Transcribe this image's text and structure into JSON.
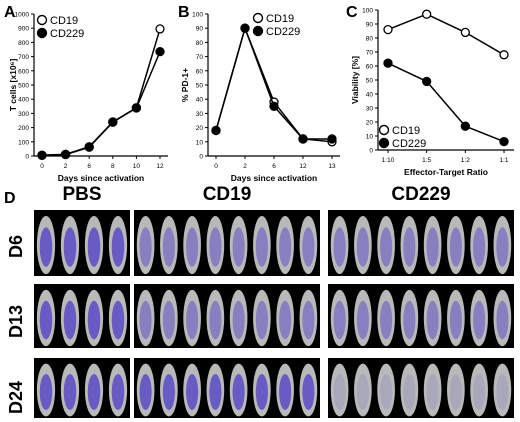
{
  "panel_letters": {
    "a": "A",
    "b": "B",
    "c": "C",
    "d": "D"
  },
  "colors": {
    "axis": "#000000",
    "open_marker": "#ffffff",
    "filled_marker": "#000000",
    "image_bg": "#000000"
  },
  "chart_data": [
    {
      "type": "line",
      "panel": "A",
      "title": "",
      "xlabel": "Days since activation",
      "ylabel": "T cells [x10⁶]",
      "x": [
        0,
        2,
        6,
        8,
        10,
        12
      ],
      "x_ticks": [
        "0",
        "2",
        "6",
        "8",
        "10",
        "12"
      ],
      "ylim": [
        0,
        1000
      ],
      "y_ticks": [
        "0",
        "100",
        "200",
        "300",
        "400",
        "500",
        "600",
        "700",
        "800",
        "900",
        "1000"
      ],
      "legend_placement": "top-left",
      "series": [
        {
          "name": "CD19",
          "marker": "open-circle",
          "values": [
            5,
            12,
            65,
            240,
            340,
            895
          ]
        },
        {
          "name": "CD229",
          "marker": "filled-circle",
          "values": [
            5,
            10,
            62,
            238,
            338,
            735
          ]
        }
      ]
    },
    {
      "type": "line",
      "panel": "B",
      "title": "",
      "xlabel": "Days since activation",
      "ylabel": "% PD-1+",
      "x": [
        0,
        2,
        6,
        12,
        13
      ],
      "x_ticks": [
        "0",
        "2",
        "6",
        "12",
        "13"
      ],
      "ylim": [
        0,
        100
      ],
      "y_ticks": [
        "0",
        "10",
        "20",
        "30",
        "40",
        "50",
        "60",
        "70",
        "80",
        "90",
        "100"
      ],
      "legend_placement": "top-right",
      "series": [
        {
          "name": "CD19",
          "marker": "open-circle",
          "values": [
            18,
            90,
            38,
            12,
            10
          ]
        },
        {
          "name": "CD229",
          "marker": "filled-circle",
          "values": [
            18,
            90,
            35,
            12,
            12
          ]
        }
      ]
    },
    {
      "type": "line",
      "panel": "C",
      "title": "",
      "xlabel": "Effector-Target Ratio",
      "ylabel": "Viability [%]",
      "categories": [
        "1:10",
        "1:5",
        "1:2",
        "1:1"
      ],
      "ylim": [
        0,
        100
      ],
      "y_ticks": [
        "0",
        "10",
        "20",
        "30",
        "40",
        "50",
        "60",
        "70",
        "80",
        "90",
        "100"
      ],
      "legend_placement": "bottom-left",
      "series": [
        {
          "name": "CD19",
          "marker": "open-circle",
          "values": [
            86,
            97,
            84,
            68
          ]
        },
        {
          "name": "CD229",
          "marker": "filled-circle",
          "values": [
            62,
            49,
            17,
            6
          ]
        }
      ]
    }
  ],
  "imaging": {
    "groups": [
      "PBS",
      "CD19",
      "CD229"
    ],
    "timepoints": [
      "D6",
      "D13",
      "D24"
    ]
  }
}
